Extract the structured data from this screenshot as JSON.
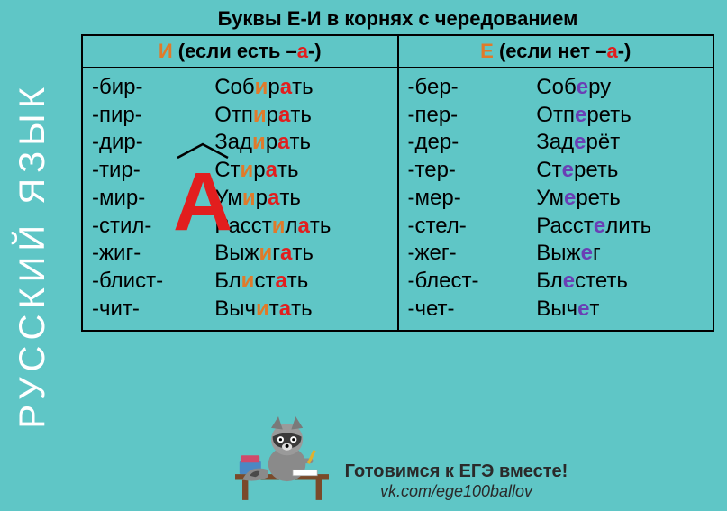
{
  "sidebar": {
    "label": "РУССКИЙ ЯЗЫК"
  },
  "title": "Буквы Е-И в корнях с чередованием",
  "headers": {
    "left_prefix": "И",
    "left_suffix": " (если есть –",
    "left_a": "а",
    "left_tail": "-)",
    "right_prefix": "Е",
    "right_suffix": " (если нет –",
    "right_a": "а",
    "right_tail": "-)"
  },
  "big_a": "А",
  "roots_i": [
    "-бир-",
    "-пир-",
    "-дир-",
    "-тир-",
    "-мир-",
    "-стил-",
    "-жиг-",
    "-блист-",
    "-чит-"
  ],
  "examples_i": [
    [
      [
        "Соб",
        ""
      ],
      [
        "и",
        "i"
      ],
      [
        "р",
        ""
      ],
      [
        "а",
        "a"
      ],
      [
        "ть",
        ""
      ]
    ],
    [
      [
        "Отп",
        ""
      ],
      [
        "и",
        "i"
      ],
      [
        "р",
        ""
      ],
      [
        "а",
        "a"
      ],
      [
        "ть",
        ""
      ]
    ],
    [
      [
        "Зад",
        ""
      ],
      [
        "и",
        "i"
      ],
      [
        "р",
        ""
      ],
      [
        "а",
        "a"
      ],
      [
        "ть",
        ""
      ]
    ],
    [
      [
        "Ст",
        ""
      ],
      [
        "и",
        "i"
      ],
      [
        "р",
        ""
      ],
      [
        "а",
        "a"
      ],
      [
        "ть",
        ""
      ]
    ],
    [
      [
        "Ум",
        ""
      ],
      [
        "и",
        "i"
      ],
      [
        "р",
        ""
      ],
      [
        "а",
        "a"
      ],
      [
        "ть",
        ""
      ]
    ],
    [
      [
        "Расст",
        ""
      ],
      [
        "и",
        "i"
      ],
      [
        "л",
        ""
      ],
      [
        "а",
        "a"
      ],
      [
        "ть",
        ""
      ]
    ],
    [
      [
        "Выж",
        ""
      ],
      [
        "и",
        "i"
      ],
      [
        "г",
        ""
      ],
      [
        "а",
        "a"
      ],
      [
        "ть",
        ""
      ]
    ],
    [
      [
        "Бл",
        ""
      ],
      [
        "и",
        "i"
      ],
      [
        "ст",
        ""
      ],
      [
        "а",
        "a"
      ],
      [
        "ть",
        ""
      ]
    ],
    [
      [
        "Выч",
        ""
      ],
      [
        "и",
        "i"
      ],
      [
        "т",
        ""
      ],
      [
        "а",
        "a"
      ],
      [
        "ть",
        ""
      ]
    ]
  ],
  "roots_e": [
    "-бер-",
    "-пер-",
    "-дер-",
    "-тер-",
    "-мер-",
    "-стел-",
    "-жег-",
    "-блест-",
    "-чет-"
  ],
  "examples_e": [
    [
      [
        "Соб",
        ""
      ],
      [
        "е",
        "e"
      ],
      [
        "ру",
        ""
      ]
    ],
    [
      [
        "Отп",
        ""
      ],
      [
        "е",
        "e"
      ],
      [
        "реть",
        ""
      ]
    ],
    [
      [
        "Зад",
        ""
      ],
      [
        "е",
        "e"
      ],
      [
        "рёт",
        ""
      ]
    ],
    [
      [
        "Ст",
        ""
      ],
      [
        "е",
        "e"
      ],
      [
        "реть",
        ""
      ]
    ],
    [
      [
        "Ум",
        ""
      ],
      [
        "е",
        "e"
      ],
      [
        "реть",
        ""
      ]
    ],
    [
      [
        "Расст",
        ""
      ],
      [
        "е",
        "e"
      ],
      [
        "лить",
        ""
      ]
    ],
    [
      [
        "Выж",
        ""
      ],
      [
        "е",
        "e"
      ],
      [
        "г",
        ""
      ]
    ],
    [
      [
        "Бл",
        ""
      ],
      [
        "е",
        "e"
      ],
      [
        "стеть",
        ""
      ]
    ],
    [
      [
        "Выч",
        ""
      ],
      [
        "е",
        "e"
      ],
      [
        "т",
        ""
      ]
    ]
  ],
  "footer": {
    "line1": "Готовимся к ЕГЭ вместе!",
    "line2": "vk.com/ege100ballov"
  },
  "colors": {
    "bg": "#5fc6c6",
    "i": "#e07a2a",
    "a": "#e21e1e",
    "e": "#6a3fb5",
    "text": "#000000",
    "sidebar_text": "#ffffff"
  }
}
